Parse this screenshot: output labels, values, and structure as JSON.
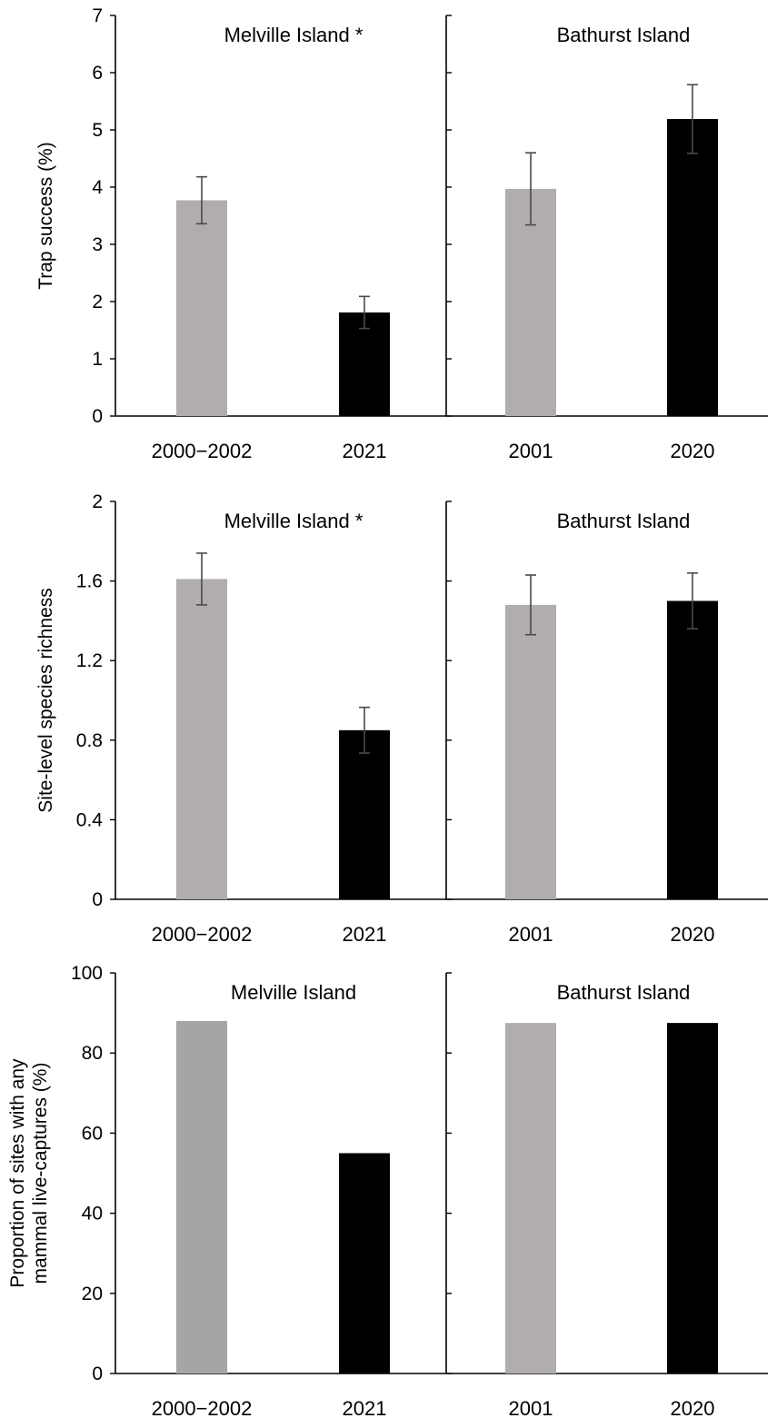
{
  "chart_data": [
    {
      "type": "bar",
      "ylabel": "Trap success (%)",
      "ylim": [
        0,
        7
      ],
      "yticks": [
        0,
        1,
        2,
        3,
        4,
        5,
        6,
        7
      ],
      "yticklabels": [
        "0",
        "1",
        "2",
        "3",
        "4",
        "5",
        "6",
        "7"
      ],
      "grid": false,
      "panels": [
        {
          "title": "Melville Island *",
          "categories": [
            "2000−2002",
            "2021"
          ],
          "values": [
            3.77,
            1.81
          ],
          "errors": [
            0.41,
            0.28
          ],
          "colors": [
            "#b0adac",
            "#000000"
          ]
        },
        {
          "title": "Bathurst Island",
          "categories": [
            "2001",
            "2020"
          ],
          "values": [
            3.97,
            5.19
          ],
          "errors": [
            0.63,
            0.6
          ],
          "colors": [
            "#b0adac",
            "#000000"
          ]
        }
      ]
    },
    {
      "type": "bar",
      "ylabel": "Site-level species richness",
      "ylim": [
        0,
        2
      ],
      "yticks": [
        0,
        0.4,
        0.8,
        1.2,
        1.6,
        2
      ],
      "yticklabels": [
        "0",
        "0.4",
        "0.8",
        "1.2",
        "1.6",
        "2"
      ],
      "grid": false,
      "panels": [
        {
          "title": "Melville Island *",
          "categories": [
            "2000−2002",
            "2021"
          ],
          "values": [
            1.61,
            0.85
          ],
          "errors": [
            0.13,
            0.115
          ],
          "colors": [
            "#b0adac",
            "#000000"
          ]
        },
        {
          "title": "Bathurst Island",
          "categories": [
            "2001",
            "2020"
          ],
          "values": [
            1.48,
            1.5
          ],
          "errors": [
            0.15,
            0.14
          ],
          "colors": [
            "#b0adac",
            "#000000"
          ]
        }
      ]
    },
    {
      "type": "bar",
      "ylabel": [
        "Proportion of sites with any",
        "mammal live-captures (%)"
      ],
      "ylim": [
        0,
        100
      ],
      "yticks": [
        0,
        20,
        40,
        60,
        80,
        100
      ],
      "yticklabels": [
        "0",
        "20",
        "40",
        "60",
        "80",
        "100"
      ],
      "grid": false,
      "panels": [
        {
          "title": "Melville Island",
          "categories": [
            "2000−2002",
            "2021"
          ],
          "values": [
            88,
            55
          ],
          "colors": [
            "#a5a5a5",
            "#000000"
          ]
        },
        {
          "title": "Bathurst Island",
          "categories": [
            "2001",
            "2020"
          ],
          "values": [
            87.5,
            87.5
          ],
          "colors": [
            "#b0adac",
            "#000000"
          ]
        }
      ]
    }
  ]
}
